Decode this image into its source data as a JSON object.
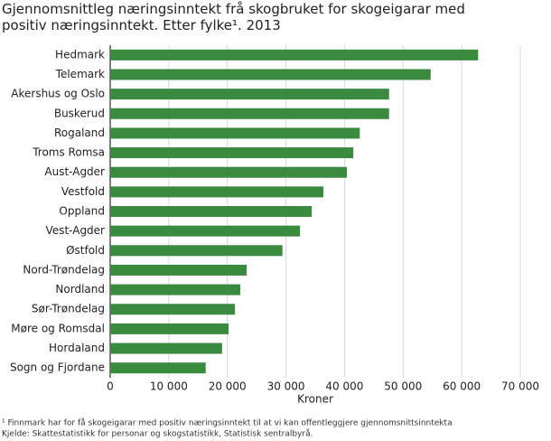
{
  "chart_data": {
    "type": "barh",
    "title": "Gjennomsnittleg næringsinntekt frå skogbruket for skogeigarar med positiv næringsinntekt. Etter fylke¹. 2013",
    "categories": [
      "Hedmark",
      "Telemark",
      "Akershus og Oslo",
      "Buskerud",
      "Rogaland",
      "Troms Romsa",
      "Aust-Agder",
      "Vestfold",
      "Oppland",
      "Vest-Agder",
      "Østfold",
      "Nord-Trøndelag",
      "Nordland",
      "Sør-Trøndelag",
      "Møre og Romsdal",
      "Hordaland",
      "Sogn og Fjordane"
    ],
    "values": [
      62800,
      54700,
      47600,
      47600,
      42600,
      41500,
      40400,
      36400,
      34400,
      32400,
      29400,
      23300,
      22200,
      21300,
      20200,
      19100,
      16300
    ],
    "color": "#3a8a3f",
    "xlabel": "Kroner",
    "xlim": [
      0,
      70000
    ],
    "xticks": [
      0,
      {
        "value": 10000,
        "label": "10 000"
      },
      {
        "value": 20000,
        "label": "20 000"
      },
      {
        "value": 30000,
        "label": "30 000"
      },
      {
        "value": 40000,
        "label": "40 000"
      },
      {
        "value": 50000,
        "label": "50 000"
      },
      {
        "value": 60000,
        "label": "60 000"
      },
      {
        "value": 70000,
        "label": "70 000"
      }
    ],
    "grid": true,
    "footnote": "¹ Finnmark har for få skogeigarar med positiv næringsinntekt til at vi kan offentleggjere gjennomsnittsinntekta",
    "source": "Kjelde: Skattestatistikk for personar og skogstatistikk, Statistisk sentralbyrå."
  }
}
